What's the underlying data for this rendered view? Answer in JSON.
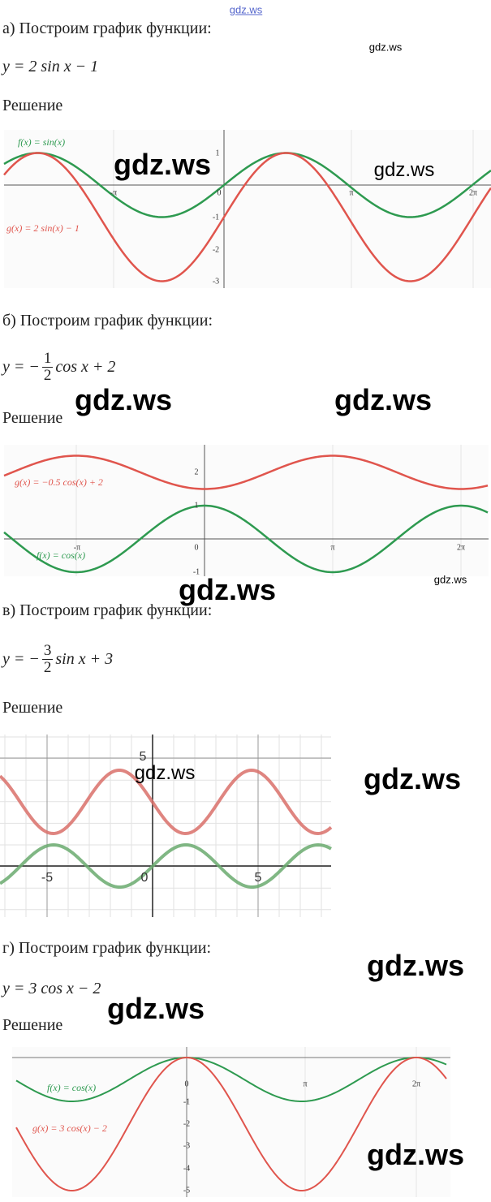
{
  "top_watermark": "gdz.ws",
  "sections": [
    {
      "heading": "а) Построим график функции:",
      "formula": "y = 2 sin x − 1",
      "solution": "Решение",
      "graph": {
        "legend": [
          "f(x) = sin(x)",
          "g(x) = 2 sin(x) − 1"
        ],
        "x_tick_labels": [
          "-π",
          "0",
          "π",
          "2π"
        ],
        "y_tick_labels": [
          "1",
          "-1",
          "-2",
          "-3"
        ]
      },
      "watermarks": [
        "gdz.ws",
        "gdz.ws",
        "gdz.ws"
      ]
    },
    {
      "heading": "б) Построим график функции:",
      "formula": {
        "before": "y = −",
        "numerator": "1",
        "denominator": "2",
        "after": "cos x + 2"
      },
      "solution": "Решение",
      "graph": {
        "legend": [
          "g(x) = −0.5 cos(x) + 2",
          "f(x) = cos(x)"
        ],
        "x_tick_labels": [
          "-π",
          "0",
          "π",
          "2π"
        ],
        "y_tick_labels": [
          "2",
          "1",
          "-1"
        ]
      },
      "watermarks": [
        "gdz.ws",
        "gdz.ws",
        "gdz.ws",
        "gdz.ws"
      ]
    },
    {
      "heading": "в) Построим график функции:",
      "formula": {
        "before": "y = −",
        "numerator": "3",
        "denominator": "2",
        "after": "sin x + 3"
      },
      "solution": "Решение",
      "graph": {
        "x_tick_labels": [
          "-5",
          "0",
          "5"
        ],
        "y_tick_labels": [
          "5"
        ]
      },
      "watermarks": [
        "gdz.ws",
        "gdz.ws"
      ]
    },
    {
      "heading": "г) Построим график функции:",
      "formula": "y = 3 cos x − 2",
      "solution": "Решение",
      "graph": {
        "legend": [
          "f(x) = cos(x)",
          "g(x) = 3 cos(x) − 2"
        ],
        "x_tick_labels": [
          "0",
          "π",
          "2π"
        ],
        "y_tick_labels": [
          "-1",
          "-2",
          "-3",
          "-4",
          "-5"
        ]
      },
      "watermarks": [
        "gdz.ws",
        "gdz.ws",
        "gdz.ws"
      ]
    }
  ]
}
